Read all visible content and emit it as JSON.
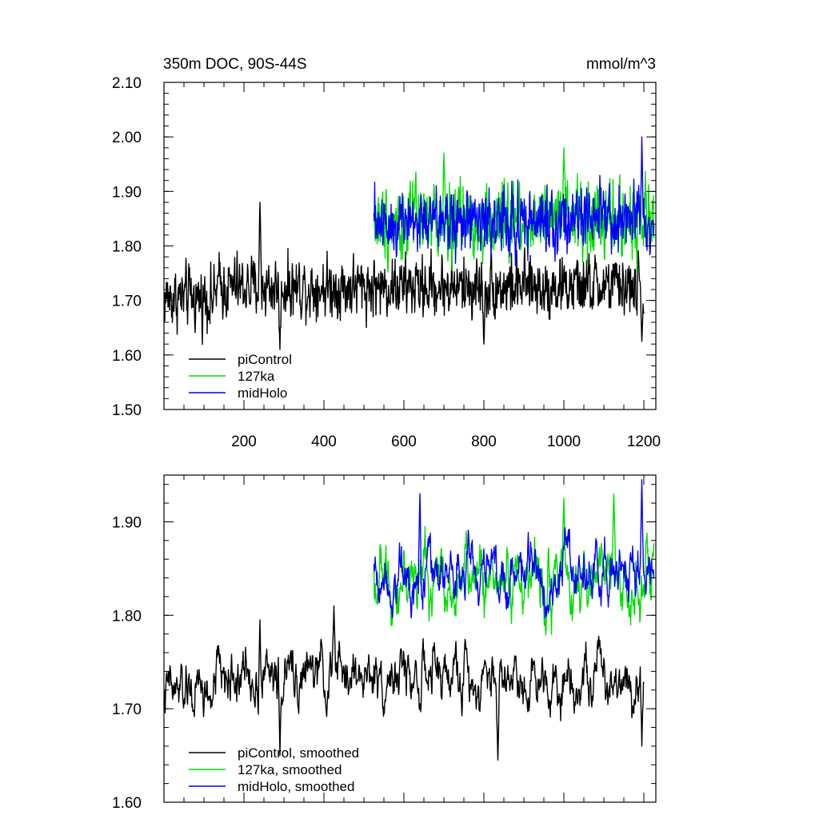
{
  "chart_data": [
    {
      "type": "line",
      "title_left": "350m DOC, 90S-44S",
      "title_right": "mmol/m^3",
      "xlim": [
        0,
        1230
      ],
      "ylim": [
        1.5,
        2.1
      ],
      "xticks": [
        200,
        400,
        600,
        800,
        1000,
        1200
      ],
      "xtick_labels": [
        "200",
        "400",
        "600",
        "800",
        "1000",
        "1200"
      ],
      "yticks": [
        1.5,
        1.6,
        1.7,
        1.8,
        1.9,
        2.0,
        2.1
      ],
      "ytick_labels": [
        "1.50",
        "1.60",
        "1.70",
        "1.80",
        "1.90",
        "2.00",
        "2.10"
      ],
      "legend_position": "bottom-left",
      "series": [
        {
          "name": "piControl",
          "color": "#000000",
          "x_start": 0,
          "x_end": 1200,
          "mean": 1.725,
          "noise": 0.045,
          "min": 1.59,
          "max": 1.88,
          "highlights": [
            [
              240,
              1.88
            ],
            [
              290,
              1.61
            ],
            [
              800,
              1.62
            ],
            [
              1195,
              1.625
            ]
          ]
        },
        {
          "name": "127ka",
          "color": "#00dd00",
          "x_start": 525,
          "x_end": 1225,
          "mean": 1.845,
          "noise": 0.055,
          "min": 1.69,
          "max": 1.98,
          "highlights": [
            [
              700,
              1.97
            ],
            [
              1000,
              1.98
            ]
          ]
        },
        {
          "name": "midHolo",
          "color": "#0000ff",
          "x_start": 525,
          "x_end": 1225,
          "mean": 1.845,
          "noise": 0.05,
          "min": 1.7,
          "max": 2.0,
          "highlights": [
            [
              1195,
              2.0
            ]
          ]
        }
      ]
    },
    {
      "type": "line",
      "xlim": [
        0,
        1230
      ],
      "ylim": [
        1.6,
        1.95
      ],
      "yticks": [
        1.6,
        1.7,
        1.8,
        1.9
      ],
      "ytick_labels": [
        "1.60",
        "1.70",
        "1.80",
        "1.90"
      ],
      "legend_position": "bottom-left",
      "series": [
        {
          "name": "piControl, smoothed",
          "color": "#000000",
          "x_start": 0,
          "x_end": 1200,
          "mean": 1.735,
          "noise": 0.03,
          "min": 1.645,
          "max": 1.81,
          "highlights": [
            [
              240,
              1.795
            ],
            [
              290,
              1.65
            ],
            [
              425,
              1.81
            ],
            [
              835,
              1.645
            ],
            [
              1195,
              1.66
            ]
          ]
        },
        {
          "name": "127ka, smoothed",
          "color": "#00dd00",
          "x_start": 525,
          "x_end": 1225,
          "mean": 1.84,
          "noise": 0.035,
          "min": 1.76,
          "max": 1.93,
          "highlights": [
            [
              1125,
              1.93
            ],
            [
              1000,
              1.925
            ]
          ]
        },
        {
          "name": "midHolo, smoothed",
          "color": "#0000ff",
          "x_start": 525,
          "x_end": 1225,
          "mean": 1.845,
          "noise": 0.03,
          "min": 1.78,
          "max": 1.945,
          "highlights": [
            [
              640,
              1.93
            ],
            [
              1195,
              1.945
            ]
          ]
        }
      ]
    }
  ]
}
